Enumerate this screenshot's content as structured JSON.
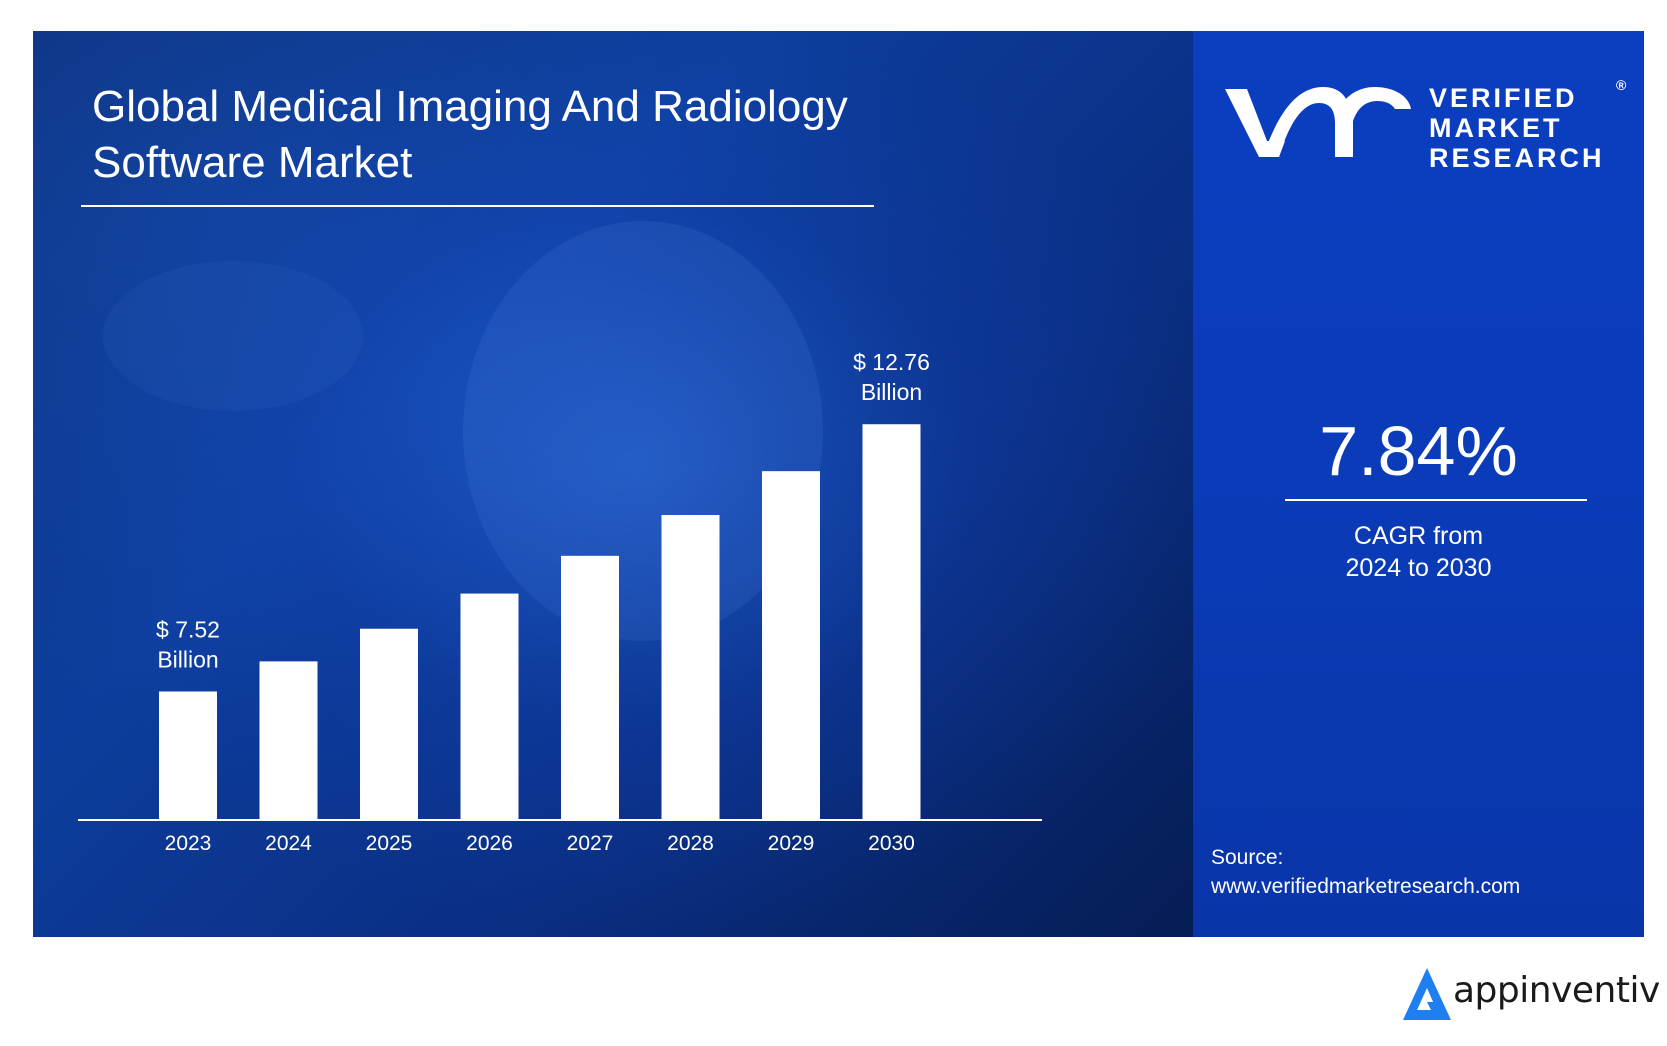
{
  "title_line1": "Global Medical Imaging And Radiology",
  "title_line2": "Software Market",
  "logo": {
    "line1": "VERIFIED",
    "line2": "MARKET",
    "line3": "RESEARCH",
    "mark": "®",
    "icon": "vmr-logo-icon"
  },
  "cagr": {
    "value": "7.84%",
    "label_line1": "CAGR from",
    "label_line2": "2024 to 2030"
  },
  "source": {
    "label": "Source:",
    "url": "www.verifiedmarketresearch.com"
  },
  "brand": {
    "name": "appinventiv",
    "icon": "appinventiv-logo-icon",
    "color": "#1e7ff0"
  },
  "colors": {
    "panel_dark": "#0b2f78",
    "panel_right": "#0a3bb8",
    "bar": "#ffffff"
  },
  "chart_data": {
    "type": "bar",
    "categories": [
      "2023",
      "2024",
      "2025",
      "2026",
      "2027",
      "2028",
      "2029",
      "2030"
    ],
    "values": [
      7.52,
      8.11,
      8.75,
      9.44,
      10.18,
      10.98,
      11.84,
      12.76
    ],
    "data_labels": [
      {
        "index": 0,
        "line1": "$ 7.52",
        "line2": "Billion"
      },
      {
        "index": 7,
        "line1": "$ 12.76",
        "line2": "Billion"
      }
    ],
    "title": "Global Medical Imaging And Radiology Software Market",
    "xlabel": "",
    "ylabel": "",
    "ylim": [
      5.0,
      14.0
    ],
    "grid": false,
    "legend": "none"
  }
}
